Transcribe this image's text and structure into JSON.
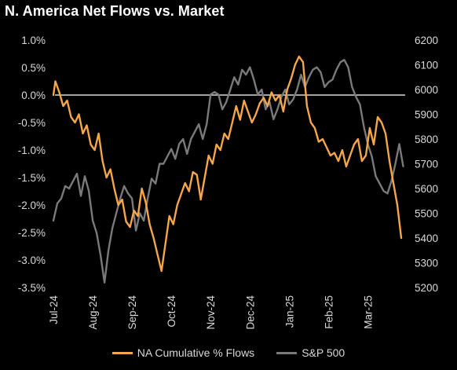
{
  "chart_data": {
    "type": "line",
    "title": "N. America Net Flows vs. Market",
    "colors": {
      "flows": "#f5a64a",
      "sp500": "#7a7a7a",
      "zero_line": "#d9d9d9",
      "background": "#000000"
    },
    "left_axis": {
      "ylim": [
        -3.5,
        1.0
      ],
      "ticks": [
        "1.0%",
        "0.5%",
        "0.0%",
        "-0.5%",
        "-1.0%",
        "-1.5%",
        "-2.0%",
        "-2.5%",
        "-3.0%",
        "-3.5%"
      ],
      "tick_values": [
        1.0,
        0.5,
        0.0,
        -0.5,
        -1.0,
        -1.5,
        -2.0,
        -2.5,
        -3.0,
        -3.5
      ]
    },
    "right_axis": {
      "ylim": [
        5200,
        6200
      ],
      "ticks": [
        "6200",
        "6100",
        "6000",
        "5900",
        "5800",
        "5700",
        "5600",
        "5500",
        "5400",
        "5300",
        "5200"
      ],
      "tick_values": [
        6200,
        6100,
        6000,
        5900,
        5800,
        5700,
        5600,
        5500,
        5400,
        5300,
        5200
      ]
    },
    "x_axis": {
      "ticks": [
        "Jul-24",
        "Aug-24",
        "Sep-24",
        "Oct-24",
        "Nov-24",
        "Dec-24",
        "Jan-25",
        "Feb-25",
        "Mar-25"
      ],
      "tick_positions": [
        0,
        1,
        2,
        3,
        4,
        5,
        6,
        7,
        8
      ],
      "xlim": [
        0,
        8.95
      ]
    },
    "series": [
      {
        "name": "NA Cumulative % Flows",
        "axis": "left",
        "x": [
          0.0,
          0.05,
          0.1,
          0.15,
          0.25,
          0.35,
          0.45,
          0.55,
          0.65,
          0.75,
          0.85,
          0.95,
          1.05,
          1.15,
          1.25,
          1.35,
          1.45,
          1.55,
          1.65,
          1.75,
          1.85,
          1.95,
          2.05,
          2.15,
          2.25,
          2.35,
          2.45,
          2.55,
          2.65,
          2.75,
          2.85,
          2.95,
          3.05,
          3.15,
          3.25,
          3.35,
          3.45,
          3.55,
          3.65,
          3.75,
          3.85,
          3.95,
          4.05,
          4.15,
          4.25,
          4.35,
          4.45,
          4.55,
          4.65,
          4.75,
          4.85,
          4.95,
          5.05,
          5.15,
          5.25,
          5.35,
          5.45,
          5.55,
          5.65,
          5.75,
          5.85,
          5.95,
          6.05,
          6.15,
          6.25,
          6.35,
          6.45,
          6.55,
          6.65,
          6.75,
          6.85,
          6.95,
          7.05,
          7.15,
          7.25,
          7.35,
          7.45,
          7.55,
          7.65,
          7.75,
          7.85,
          7.95,
          8.05,
          8.15,
          8.25,
          8.35,
          8.45,
          8.55,
          8.65,
          8.75,
          8.85
        ],
        "values": [
          0.0,
          0.25,
          0.15,
          0.05,
          -0.2,
          -0.1,
          -0.4,
          -0.5,
          -0.35,
          -0.7,
          -0.55,
          -0.9,
          -1.0,
          -0.7,
          -1.2,
          -1.5,
          -1.35,
          -1.7,
          -2.0,
          -1.9,
          -2.3,
          -2.4,
          -2.1,
          -2.2,
          -1.7,
          -1.95,
          -2.35,
          -2.6,
          -2.9,
          -3.2,
          -2.7,
          -2.2,
          -2.35,
          -2.0,
          -1.8,
          -1.6,
          -1.75,
          -1.4,
          -1.45,
          -1.9,
          -1.5,
          -1.1,
          -1.25,
          -0.9,
          -1.0,
          -0.7,
          -0.8,
          -0.5,
          -0.2,
          -0.45,
          -0.1,
          -0.3,
          -0.5,
          -0.35,
          -0.15,
          -0.05,
          -0.2,
          0.05,
          -0.1,
          0.0,
          -0.3,
          0.1,
          0.3,
          0.55,
          0.7,
          0.6,
          -0.2,
          -0.5,
          -0.6,
          -0.85,
          -0.8,
          -0.95,
          -1.1,
          -1.05,
          -1.2,
          -1.0,
          -1.3,
          -1.1,
          -0.9,
          -0.8,
          -1.2,
          -1.1,
          -0.6,
          -0.9,
          -0.4,
          -0.5,
          -0.7,
          -1.2,
          -1.6,
          -2.0,
          -2.6
        ]
      },
      {
        "name": "S&P 500",
        "axis": "right",
        "x": [
          0.0,
          0.1,
          0.2,
          0.3,
          0.4,
          0.5,
          0.6,
          0.7,
          0.8,
          0.9,
          1.0,
          1.1,
          1.2,
          1.3,
          1.4,
          1.5,
          1.6,
          1.7,
          1.8,
          1.9,
          2.0,
          2.1,
          2.2,
          2.3,
          2.4,
          2.5,
          2.6,
          2.7,
          2.8,
          2.9,
          3.0,
          3.1,
          3.2,
          3.3,
          3.4,
          3.5,
          3.6,
          3.7,
          3.8,
          3.9,
          4.0,
          4.1,
          4.2,
          4.3,
          4.4,
          4.5,
          4.6,
          4.7,
          4.8,
          4.9,
          5.0,
          5.1,
          5.2,
          5.3,
          5.4,
          5.5,
          5.6,
          5.7,
          5.8,
          5.9,
          6.0,
          6.1,
          6.2,
          6.3,
          6.4,
          6.5,
          6.6,
          6.7,
          6.8,
          6.9,
          7.0,
          7.1,
          7.2,
          7.3,
          7.4,
          7.5,
          7.6,
          7.7,
          7.8,
          7.9,
          8.0,
          8.1,
          8.2,
          8.3,
          8.4,
          8.5,
          8.6,
          8.7,
          8.8,
          8.9
        ],
        "values": [
          5470,
          5540,
          5560,
          5610,
          5600,
          5630,
          5660,
          5570,
          5650,
          5590,
          5470,
          5420,
          5330,
          5220,
          5350,
          5440,
          5500,
          5560,
          5610,
          5580,
          5560,
          5430,
          5500,
          5470,
          5560,
          5640,
          5620,
          5700,
          5700,
          5730,
          5760,
          5720,
          5780,
          5800,
          5740,
          5800,
          5830,
          5860,
          5800,
          5860,
          5980,
          5990,
          5980,
          5920,
          5950,
          6000,
          6050,
          6020,
          6080,
          6060,
          6090,
          6040,
          5980,
          6000,
          5920,
          5950,
          5880,
          5920,
          5970,
          6000,
          5940,
          5960,
          6000,
          6060,
          6010,
          6050,
          6080,
          6090,
          6070,
          6010,
          6030,
          6040,
          6080,
          6110,
          6120,
          6090,
          6010,
          5970,
          5940,
          5850,
          5780,
          5730,
          5650,
          5620,
          5590,
          5580,
          5630,
          5700,
          5780,
          5690
        ]
      }
    ],
    "legend": {
      "position": "bottom"
    },
    "grid": false
  }
}
